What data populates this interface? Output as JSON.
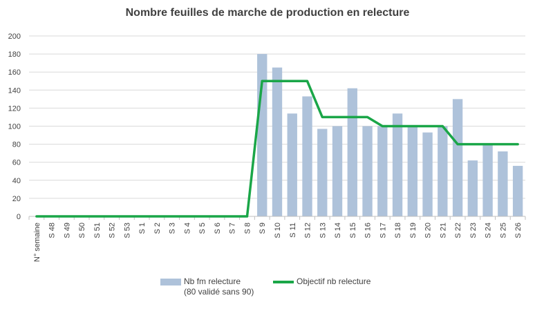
{
  "chart_data": {
    "type": "bar",
    "title": "Nombre feuilles de marche de production en relecture",
    "categories": [
      "N° semaine",
      "S 48",
      "S 49",
      "S 50",
      "S 51",
      "S 52",
      "S 53",
      "S 1",
      "S 2",
      "S 3",
      "S 4",
      "S 5",
      "S 6",
      "S 7",
      "S 8",
      "S 9",
      "S 10",
      "S 11",
      "S 12",
      "S 13",
      "S 14",
      "S 15",
      "S 16",
      "S 17",
      "S 18",
      "S 19",
      "S 20",
      "S 21",
      "S 22",
      "S 23",
      "S 24",
      "S 25",
      "S 26"
    ],
    "ylim": [
      0,
      200
    ],
    "yticks": [
      0,
      20,
      40,
      60,
      80,
      100,
      120,
      140,
      160,
      180,
      200
    ],
    "grid": true,
    "legend_position": "bottom",
    "series": [
      {
        "name": "Nb fm relecture",
        "name_line2": "(80 validé sans 90)",
        "type": "bar",
        "color": "#aec2da",
        "values": [
          null,
          null,
          null,
          null,
          null,
          null,
          null,
          null,
          null,
          null,
          null,
          null,
          null,
          null,
          null,
          180,
          165,
          114,
          133,
          97,
          100,
          142,
          100,
          100,
          114,
          100,
          93,
          100,
          130,
          62,
          80,
          72,
          56
        ]
      },
      {
        "name": "Objectif nb relecture",
        "type": "line",
        "color": "#1aa648",
        "values": [
          0,
          0,
          0,
          0,
          0,
          0,
          0,
          0,
          0,
          0,
          0,
          0,
          0,
          0,
          0,
          150,
          150,
          150,
          150,
          110,
          110,
          110,
          110,
          100,
          100,
          100,
          100,
          100,
          80,
          80,
          80,
          80,
          80
        ]
      }
    ]
  }
}
